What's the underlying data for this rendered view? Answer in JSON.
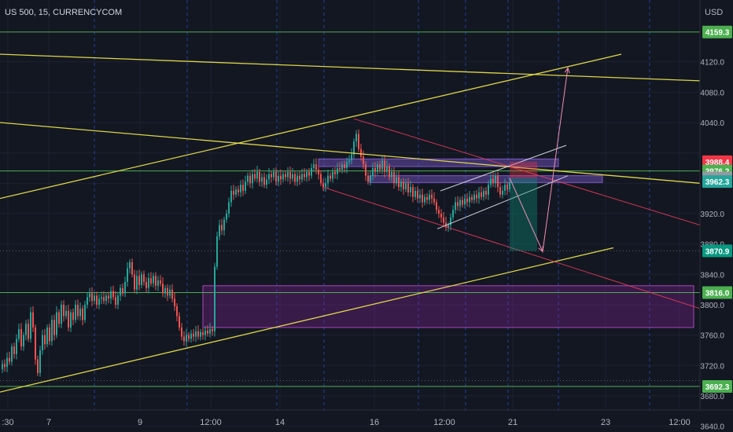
{
  "header": {
    "symbol": "US 500, 15, CURRENCYCOM",
    "currency": "USD"
  },
  "colors": {
    "background": "#131722",
    "grid": "#1e2230",
    "axis_text": "#b2b5be",
    "candle_up": "#26a69a",
    "candle_down": "#ef5350",
    "yellow_line": "#f2e94e",
    "green_line": "#4caf50",
    "red_line": "#e53958",
    "white_line": "#e0e3eb",
    "pink_arrow": "#f48fb1",
    "purple_zone": "#9c27b0",
    "blue_dashed": "#2962ff"
  },
  "chart_data": {
    "type": "candlestick",
    "title": "US 500, 15, CURRENCYCOM",
    "ylabel": "USD",
    "ylim": [
      3620,
      4190
    ],
    "y_ticks": [
      3640,
      3680,
      3720,
      3760,
      3800,
      3840,
      3880,
      3920,
      4040,
      4080,
      4120
    ],
    "x_ticks": [
      ":30",
      "7",
      "9",
      "12:00",
      "14",
      "16",
      "12:00",
      "21",
      "23",
      "12:00"
    ],
    "price_labels": [
      {
        "value": "4159.3",
        "color": "#4caf50",
        "text_color": "#ffffff"
      },
      {
        "value": "3988.4",
        "color": "#f23645",
        "text_color": "#ffffff"
      },
      {
        "value": "3976.2",
        "color": "#4caf50",
        "text_color": "#ffffff"
      },
      {
        "value": "3967.0",
        "color": "#9598a1",
        "text_color": "#ffffff"
      },
      {
        "value": "3962.3",
        "color": "#26a69a",
        "text_color": "#ffffff"
      },
      {
        "value": "3870.9",
        "color": "#089981",
        "text_color": "#ffffff"
      },
      {
        "value": "3816.0",
        "color": "#4caf50",
        "text_color": "#ffffff"
      },
      {
        "value": "3692.3",
        "color": "#4caf50",
        "text_color": "#ffffff"
      }
    ],
    "horizontal_levels": [
      4159.3,
      3976.2,
      3816.0,
      3692.3
    ],
    "price_path": [
      [
        0,
        3715
      ],
      [
        3,
        3722
      ],
      [
        6,
        3718
      ],
      [
        9,
        3730
      ],
      [
        12,
        3725
      ],
      [
        15,
        3745
      ],
      [
        18,
        3735
      ],
      [
        21,
        3755
      ],
      [
        24,
        3768
      ],
      [
        27,
        3745
      ],
      [
        30,
        3760
      ],
      [
        33,
        3775
      ],
      [
        36,
        3755
      ],
      [
        39,
        3790
      ],
      [
        42,
        3770
      ],
      [
        45,
        3728
      ],
      [
        48,
        3710
      ],
      [
        51,
        3740
      ],
      [
        54,
        3760
      ],
      [
        57,
        3748
      ],
      [
        60,
        3770
      ],
      [
        63,
        3752
      ],
      [
        66,
        3780
      ],
      [
        69,
        3760
      ],
      [
        72,
        3790
      ],
      [
        75,
        3775
      ],
      [
        78,
        3800
      ],
      [
        81,
        3785
      ],
      [
        84,
        3792
      ],
      [
        87,
        3770
      ],
      [
        90,
        3790
      ],
      [
        93,
        3780
      ],
      [
        96,
        3800
      ],
      [
        99,
        3785
      ],
      [
        102,
        3795
      ],
      [
        105,
        3780
      ],
      [
        108,
        3800
      ],
      [
        111,
        3810
      ],
      [
        114,
        3815
      ],
      [
        117,
        3805
      ],
      [
        120,
        3812
      ],
      [
        123,
        3800
      ],
      [
        126,
        3808
      ],
      [
        129,
        3810
      ],
      [
        132,
        3805
      ],
      [
        135,
        3812
      ],
      [
        138,
        3808
      ],
      [
        141,
        3818
      ],
      [
        144,
        3810
      ],
      [
        147,
        3800
      ],
      [
        150,
        3812
      ],
      [
        153,
        3822
      ],
      [
        156,
        3815
      ],
      [
        159,
        3830
      ],
      [
        162,
        3848
      ],
      [
        165,
        3856
      ],
      [
        168,
        3840
      ],
      [
        171,
        3820
      ],
      [
        174,
        3838
      ],
      [
        177,
        3826
      ],
      [
        180,
        3840
      ],
      [
        183,
        3830
      ],
      [
        186,
        3822
      ],
      [
        189,
        3835
      ],
      [
        192,
        3828
      ],
      [
        195,
        3838
      ],
      [
        198,
        3825
      ],
      [
        201,
        3832
      ],
      [
        204,
        3828
      ],
      [
        207,
        3815
      ],
      [
        210,
        3822
      ],
      [
        213,
        3812
      ],
      [
        216,
        3820
      ],
      [
        219,
        3808
      ],
      [
        222,
        3798
      ],
      [
        225,
        3785
      ],
      [
        228,
        3770
      ],
      [
        231,
        3758
      ],
      [
        234,
        3752
      ],
      [
        237,
        3760
      ],
      [
        240,
        3755
      ],
      [
        243,
        3762
      ],
      [
        246,
        3758
      ],
      [
        249,
        3765
      ],
      [
        252,
        3758
      ],
      [
        255,
        3764
      ],
      [
        258,
        3760
      ],
      [
        261,
        3766
      ],
      [
        264,
        3762
      ],
      [
        267,
        3768
      ],
      [
        270,
        3765
      ],
      [
        273,
        3850
      ],
      [
        276,
        3890
      ],
      [
        279,
        3905
      ],
      [
        282,
        3898
      ],
      [
        285,
        3912
      ],
      [
        288,
        3920
      ],
      [
        291,
        3935
      ],
      [
        294,
        3950
      ],
      [
        297,
        3945
      ],
      [
        300,
        3952
      ],
      [
        303,
        3948
      ],
      [
        306,
        3958
      ],
      [
        309,
        3950
      ],
      [
        312,
        3962
      ],
      [
        315,
        3970
      ],
      [
        318,
        3960
      ],
      [
        321,
        3972
      ],
      [
        324,
        3966
      ],
      [
        327,
        3975
      ],
      [
        330,
        3962
      ],
      [
        333,
        3968
      ],
      [
        336,
        3958
      ],
      [
        339,
        3965
      ],
      [
        342,
        3972
      ],
      [
        345,
        3968
      ],
      [
        348,
        3975
      ],
      [
        351,
        3962
      ],
      [
        354,
        3970
      ],
      [
        357,
        3965
      ],
      [
        360,
        3972
      ],
      [
        363,
        3968
      ],
      [
        366,
        3975
      ],
      [
        369,
        3966
      ],
      [
        372,
        3972
      ],
      [
        375,
        3962
      ],
      [
        378,
        3970
      ],
      [
        381,
        3965
      ],
      [
        384,
        3972
      ],
      [
        387,
        3968
      ],
      [
        390,
        3975
      ],
      [
        393,
        3970
      ],
      [
        396,
        3980
      ],
      [
        399,
        3985
      ],
      [
        402,
        3978
      ],
      [
        405,
        3972
      ],
      [
        408,
        3960
      ],
      [
        411,
        3955
      ],
      [
        414,
        3960
      ],
      [
        417,
        3970
      ],
      [
        420,
        3966
      ],
      [
        423,
        3975
      ],
      [
        426,
        3972
      ],
      [
        429,
        3980
      ],
      [
        432,
        3978
      ],
      [
        435,
        3985
      ],
      [
        438,
        3980
      ],
      [
        441,
        3988
      ],
      [
        444,
        3990
      ],
      [
        447,
        3998
      ],
      [
        450,
        4015
      ],
      [
        453,
        4025
      ],
      [
        456,
        4005
      ],
      [
        459,
        3995
      ],
      [
        462,
        3985
      ],
      [
        465,
        3970
      ],
      [
        468,
        3962
      ],
      [
        471,
        3970
      ],
      [
        474,
        3980
      ],
      [
        477,
        3975
      ],
      [
        480,
        3985
      ],
      [
        483,
        3978
      ],
      [
        486,
        3990
      ],
      [
        489,
        3975
      ],
      [
        492,
        3982
      ],
      [
        495,
        3968
      ],
      [
        498,
        3975
      ],
      [
        501,
        3960
      ],
      [
        504,
        3968
      ],
      [
        507,
        3955
      ],
      [
        510,
        3962
      ],
      [
        513,
        3952
      ],
      [
        516,
        3960
      ],
      [
        519,
        3948
      ],
      [
        522,
        3955
      ],
      [
        525,
        3942
      ],
      [
        528,
        3950
      ],
      [
        531,
        3940
      ],
      [
        534,
        3945
      ],
      [
        537,
        3935
      ],
      [
        540,
        3942
      ],
      [
        543,
        3938
      ],
      [
        546,
        3945
      ],
      [
        549,
        3940
      ],
      [
        552,
        3935
      ],
      [
        555,
        3925
      ],
      [
        558,
        3920
      ],
      [
        561,
        3915
      ],
      [
        564,
        3908
      ],
      [
        567,
        3902
      ],
      [
        570,
        3905
      ],
      [
        573,
        3915
      ],
      [
        576,
        3925
      ],
      [
        579,
        3935
      ],
      [
        582,
        3930
      ],
      [
        585,
        3938
      ],
      [
        588,
        3932
      ],
      [
        591,
        3940
      ],
      [
        594,
        3935
      ],
      [
        597,
        3942
      ],
      [
        600,
        3938
      ],
      [
        603,
        3945
      ],
      [
        606,
        3940
      ],
      [
        609,
        3948
      ],
      [
        612,
        3942
      ],
      [
        615,
        3950
      ],
      [
        618,
        3945
      ],
      [
        621,
        3958
      ],
      [
        624,
        3966
      ],
      [
        627,
        3960
      ],
      [
        630,
        3970
      ],
      [
        633,
        3955
      ],
      [
        636,
        3945
      ],
      [
        639,
        3950
      ],
      [
        642,
        3958
      ],
      [
        645,
        3952
      ],
      [
        648,
        3962
      ]
    ],
    "trendlines": [
      {
        "color": "yellow",
        "from": [
          0,
          4130
        ],
        "to": [
          890,
          4095
        ]
      },
      {
        "color": "yellow",
        "from": [
          0,
          4040
        ],
        "to": [
          890,
          3960
        ]
      },
      {
        "color": "yellow",
        "from": [
          0,
          3940
        ],
        "to": [
          790,
          4130
        ]
      },
      {
        "color": "yellow",
        "from": [
          0,
          3685
        ],
        "to": [
          780,
          3875
        ]
      },
      {
        "color": "red",
        "from": [
          450,
          4045
        ],
        "to": [
          890,
          3905
        ]
      },
      {
        "color": "red",
        "from": [
          410,
          3955
        ],
        "to": [
          890,
          3795
        ]
      },
      {
        "color": "white",
        "from": [
          560,
          3950
        ],
        "to": [
          720,
          4010
        ]
      },
      {
        "color": "white",
        "from": [
          556,
          3900
        ],
        "to": [
          722,
          3970
        ]
      }
    ],
    "zones": [
      {
        "name": "purple-demand-zone",
        "x1": 258,
        "x2": 882,
        "y_top": 3825,
        "y_bottom": 3770
      },
      {
        "name": "purple-supply-band-1",
        "x1": 405,
        "x2": 710,
        "y_top": 3992,
        "y_bottom": 3982
      },
      {
        "name": "purple-supply-band-2",
        "x1": 470,
        "x2": 766,
        "y_top": 3970,
        "y_bottom": 3961
      }
    ],
    "position": {
      "x1": 648,
      "x2": 683,
      "entry": 3967.0,
      "stop": 3988.4,
      "target": 3870.9
    },
    "projection_arrow": [
      [
        648,
        3967
      ],
      [
        690,
        3870
      ],
      [
        722,
        4112
      ]
    ]
  }
}
